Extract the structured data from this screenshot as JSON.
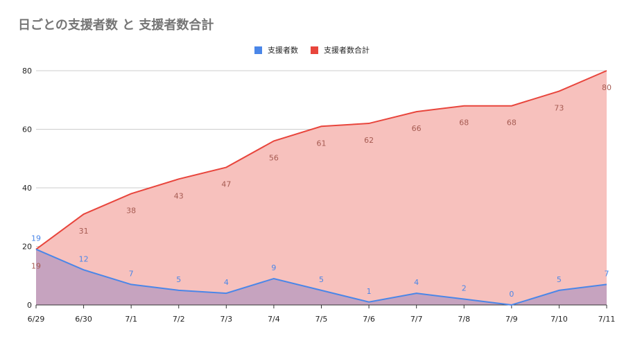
{
  "title": "日ごとの支援者数 と 支援者数合計",
  "colors": {
    "series1": "#4a86e8",
    "series2": "#e8453c",
    "area2": "#f7c1bd",
    "area1": "#c6a3bf",
    "grid": "#cccccc",
    "axis": "#333333",
    "label1": "#4a86e8",
    "label2": "#a65b52"
  },
  "chart_data": {
    "type": "area",
    "title": "日ごとの支援者数 と 支援者数合計",
    "categories": [
      "6/29",
      "6/30",
      "7/1",
      "7/2",
      "7/3",
      "7/4",
      "7/5",
      "7/6",
      "7/7",
      "7/8",
      "7/9",
      "7/10",
      "7/11"
    ],
    "series": [
      {
        "name": "支援者数",
        "values": [
          19,
          12,
          7,
          5,
          4,
          9,
          5,
          1,
          4,
          2,
          0,
          5,
          7
        ]
      },
      {
        "name": "支援者数合計",
        "values": [
          19,
          31,
          38,
          43,
          47,
          56,
          61,
          62,
          66,
          68,
          68,
          73,
          80
        ]
      }
    ],
    "ylim": [
      0,
      80
    ],
    "yticks": [
      0,
      20,
      40,
      60,
      80
    ],
    "grid": true,
    "legend_position": "top",
    "data_labels": true
  }
}
